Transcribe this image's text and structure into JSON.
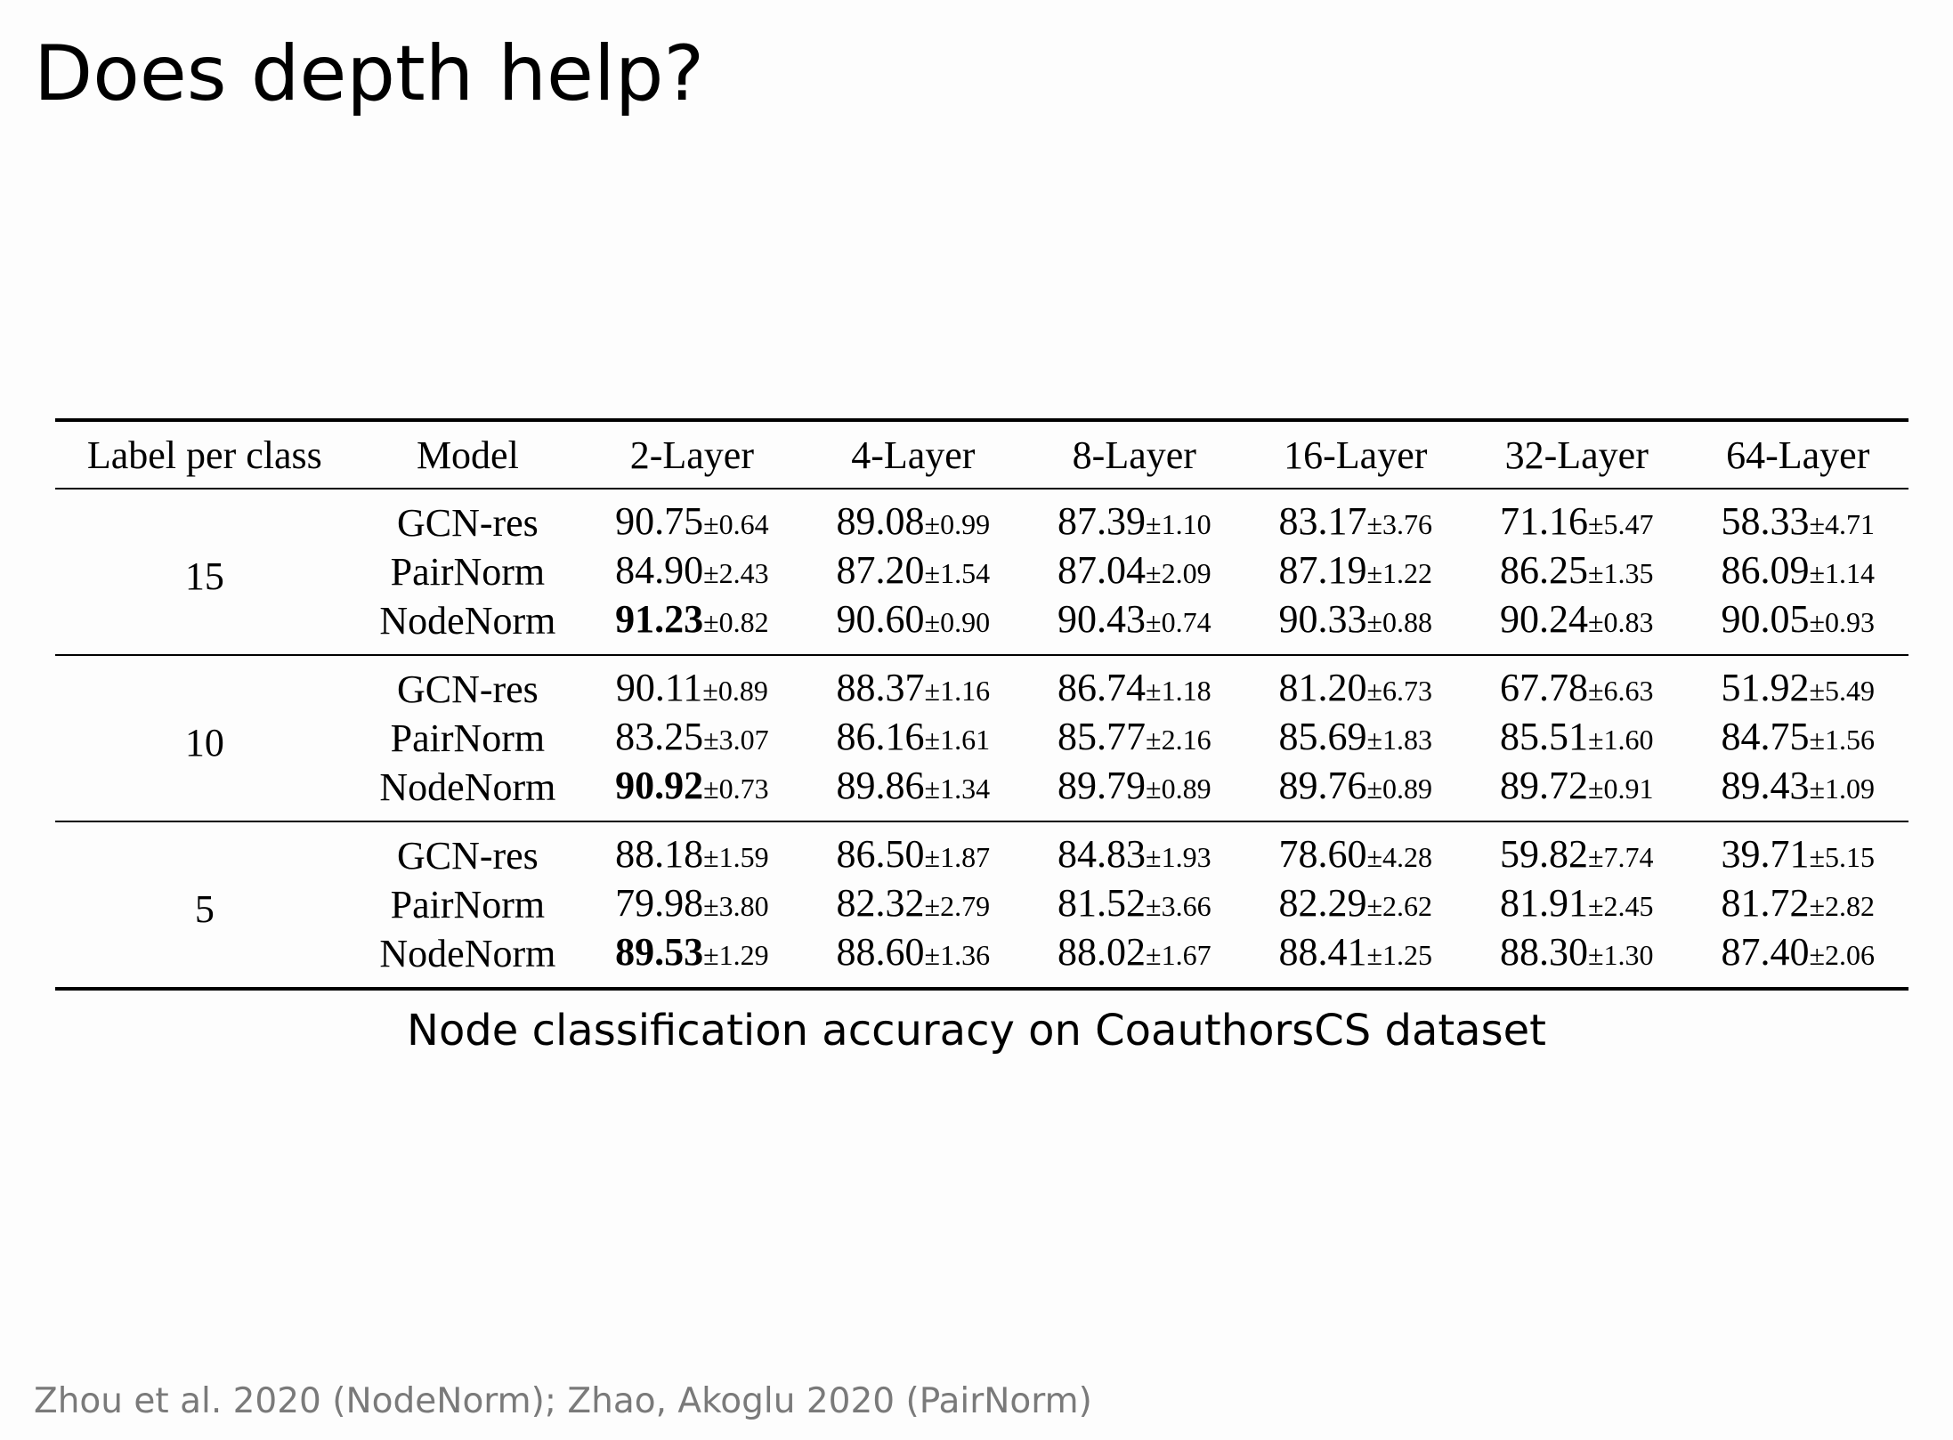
{
  "title": "Does depth help?",
  "table": {
    "headers": [
      "Label per class",
      "Model",
      "2-Layer",
      "4-Layer",
      "8-Layer",
      "16-Layer",
      "32-Layer",
      "64-Layer"
    ],
    "groups": [
      {
        "label": "15",
        "rows": [
          {
            "model": "GCN-res",
            "cells": [
              {
                "mean": "90.75",
                "sd": "±0.64"
              },
              {
                "mean": "89.08",
                "sd": "±0.99"
              },
              {
                "mean": "87.39",
                "sd": "±1.10"
              },
              {
                "mean": "83.17",
                "sd": "±3.76"
              },
              {
                "mean": "71.16",
                "sd": "±5.47"
              },
              {
                "mean": "58.33",
                "sd": "±4.71"
              }
            ]
          },
          {
            "model": "PairNorm",
            "cells": [
              {
                "mean": "84.90",
                "sd": "±2.43"
              },
              {
                "mean": "87.20",
                "sd": "±1.54"
              },
              {
                "mean": "87.04",
                "sd": "±2.09"
              },
              {
                "mean": "87.19",
                "sd": "±1.22"
              },
              {
                "mean": "86.25",
                "sd": "±1.35"
              },
              {
                "mean": "86.09",
                "sd": "±1.14"
              }
            ]
          },
          {
            "model": "NodeNorm",
            "cells": [
              {
                "mean": "91.23",
                "sd": "±0.82",
                "bold": true
              },
              {
                "mean": "90.60",
                "sd": "±0.90"
              },
              {
                "mean": "90.43",
                "sd": "±0.74"
              },
              {
                "mean": "90.33",
                "sd": "±0.88"
              },
              {
                "mean": "90.24",
                "sd": "±0.83"
              },
              {
                "mean": "90.05",
                "sd": "±0.93"
              }
            ]
          }
        ]
      },
      {
        "label": "10",
        "rows": [
          {
            "model": "GCN-res",
            "cells": [
              {
                "mean": "90.11",
                "sd": "±0.89"
              },
              {
                "mean": "88.37",
                "sd": "±1.16"
              },
              {
                "mean": "86.74",
                "sd": "±1.18"
              },
              {
                "mean": "81.20",
                "sd": "±6.73"
              },
              {
                "mean": "67.78",
                "sd": "±6.63"
              },
              {
                "mean": "51.92",
                "sd": "±5.49"
              }
            ]
          },
          {
            "model": "PairNorm",
            "cells": [
              {
                "mean": "83.25",
                "sd": "±3.07"
              },
              {
                "mean": "86.16",
                "sd": "±1.61"
              },
              {
                "mean": "85.77",
                "sd": "±2.16"
              },
              {
                "mean": "85.69",
                "sd": "±1.83"
              },
              {
                "mean": "85.51",
                "sd": "±1.60"
              },
              {
                "mean": "84.75",
                "sd": "±1.56"
              }
            ]
          },
          {
            "model": "NodeNorm",
            "cells": [
              {
                "mean": "90.92",
                "sd": "±0.73",
                "bold": true
              },
              {
                "mean": "89.86",
                "sd": "±1.34"
              },
              {
                "mean": "89.79",
                "sd": "±0.89"
              },
              {
                "mean": "89.76",
                "sd": "±0.89"
              },
              {
                "mean": "89.72",
                "sd": "±0.91"
              },
              {
                "mean": "89.43",
                "sd": "±1.09"
              }
            ]
          }
        ]
      },
      {
        "label": "5",
        "rows": [
          {
            "model": "GCN-res",
            "cells": [
              {
                "mean": "88.18",
                "sd": "±1.59"
              },
              {
                "mean": "86.50",
                "sd": "±1.87"
              },
              {
                "mean": "84.83",
                "sd": "±1.93"
              },
              {
                "mean": "78.60",
                "sd": "±4.28"
              },
              {
                "mean": "59.82",
                "sd": "±7.74"
              },
              {
                "mean": "39.71",
                "sd": "±5.15"
              }
            ]
          },
          {
            "model": "PairNorm",
            "cells": [
              {
                "mean": "79.98",
                "sd": "±3.80"
              },
              {
                "mean": "82.32",
                "sd": "±2.79"
              },
              {
                "mean": "81.52",
                "sd": "±3.66"
              },
              {
                "mean": "82.29",
                "sd": "±2.62"
              },
              {
                "mean": "81.91",
                "sd": "±2.45"
              },
              {
                "mean": "81.72",
                "sd": "±2.82"
              }
            ]
          },
          {
            "model": "NodeNorm",
            "cells": [
              {
                "mean": "89.53",
                "sd": "±1.29",
                "bold": true
              },
              {
                "mean": "88.60",
                "sd": "±1.36"
              },
              {
                "mean": "88.02",
                "sd": "±1.67"
              },
              {
                "mean": "88.41",
                "sd": "±1.25"
              },
              {
                "mean": "88.30",
                "sd": "±1.30"
              },
              {
                "mean": "87.40",
                "sd": "±2.06"
              }
            ]
          }
        ]
      }
    ]
  },
  "caption": "Node classification accuracy on CoauthorsCS dataset",
  "citation": "Zhou et al. 2020 (NodeNorm); Zhao, Akoglu 2020 (PairNorm)"
}
